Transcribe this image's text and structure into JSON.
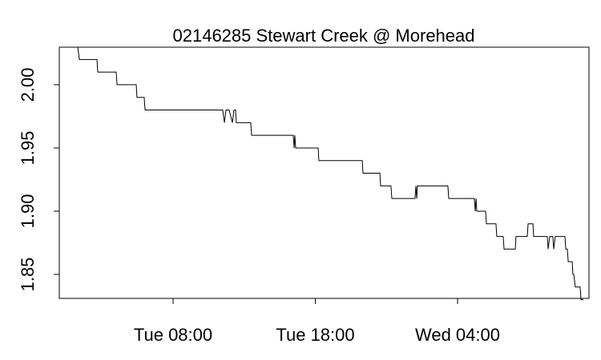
{
  "chart_data": {
    "type": "line",
    "title": "02146285 Stewart Creek @ Morehead",
    "x": [
      1.3,
      1.41,
      2.65,
      2.7,
      4.0,
      4.06,
      5.41,
      5.46,
      5.97,
      6.03,
      11.49,
      11.61,
      11.72,
      11.94,
      12.17,
      12.28,
      12.39,
      12.45,
      13.46,
      13.52,
      16.45,
      16.51,
      16.56,
      16.62,
      18.2,
      18.25,
      21.3,
      21.35,
      22.54,
      22.59,
      23.32,
      23.38,
      25.01,
      25.07,
      25.13,
      25.18,
      27.32,
      27.38,
      29.18,
      29.24,
      29.3,
      29.35,
      29.97,
      30.03,
      30.7,
      30.76,
      31.21,
      31.27,
      32.06,
      32.11,
      32.9,
      32.96,
      33.3,
      33.35,
      34.31,
      34.37,
      34.48,
      34.7,
      34.76,
      34.87,
      35.55,
      35.61,
      35.72,
      35.78,
      36.06,
      36.11,
      36.17,
      36.28,
      36.62,
      36.68,
      36.85
    ],
    "series": [
      {
        "color": "#000000",
        "values": [
          2.03,
          2.02,
          2.02,
          2.01,
          2.01,
          2.0,
          2.0,
          1.99,
          1.99,
          1.98,
          1.98,
          1.97,
          1.98,
          1.98,
          1.97,
          1.98,
          1.98,
          1.97,
          1.97,
          1.96,
          1.96,
          1.95,
          1.96,
          1.95,
          1.95,
          1.94,
          1.94,
          1.93,
          1.93,
          1.92,
          1.92,
          1.91,
          1.91,
          1.92,
          1.91,
          1.92,
          1.92,
          1.91,
          1.91,
          1.9,
          1.91,
          1.9,
          1.9,
          1.89,
          1.89,
          1.88,
          1.88,
          1.87,
          1.87,
          1.88,
          1.88,
          1.89,
          1.89,
          1.88,
          1.88,
          1.87,
          1.88,
          1.88,
          1.87,
          1.88,
          1.88,
          1.87,
          1.87,
          1.86,
          1.86,
          1.85,
          1.85,
          1.84,
          1.84,
          1.83,
          1.83
        ]
      }
    ],
    "xlim": [
      0.0,
      37.24
    ],
    "xticks": [
      {
        "value": 8,
        "label": "Tue 08:00"
      },
      {
        "value": 18,
        "label": "Tue 18:00"
      },
      {
        "value": 28,
        "label": "Wed 04:00"
      }
    ],
    "ylim": [
      1.831,
      2.0297
    ],
    "yticks": [
      {
        "value": 1.85,
        "label": "1.85"
      },
      {
        "value": 1.9,
        "label": "1.90"
      },
      {
        "value": 1.95,
        "label": "1.95"
      },
      {
        "value": 2.0,
        "label": "2.00"
      }
    ]
  }
}
